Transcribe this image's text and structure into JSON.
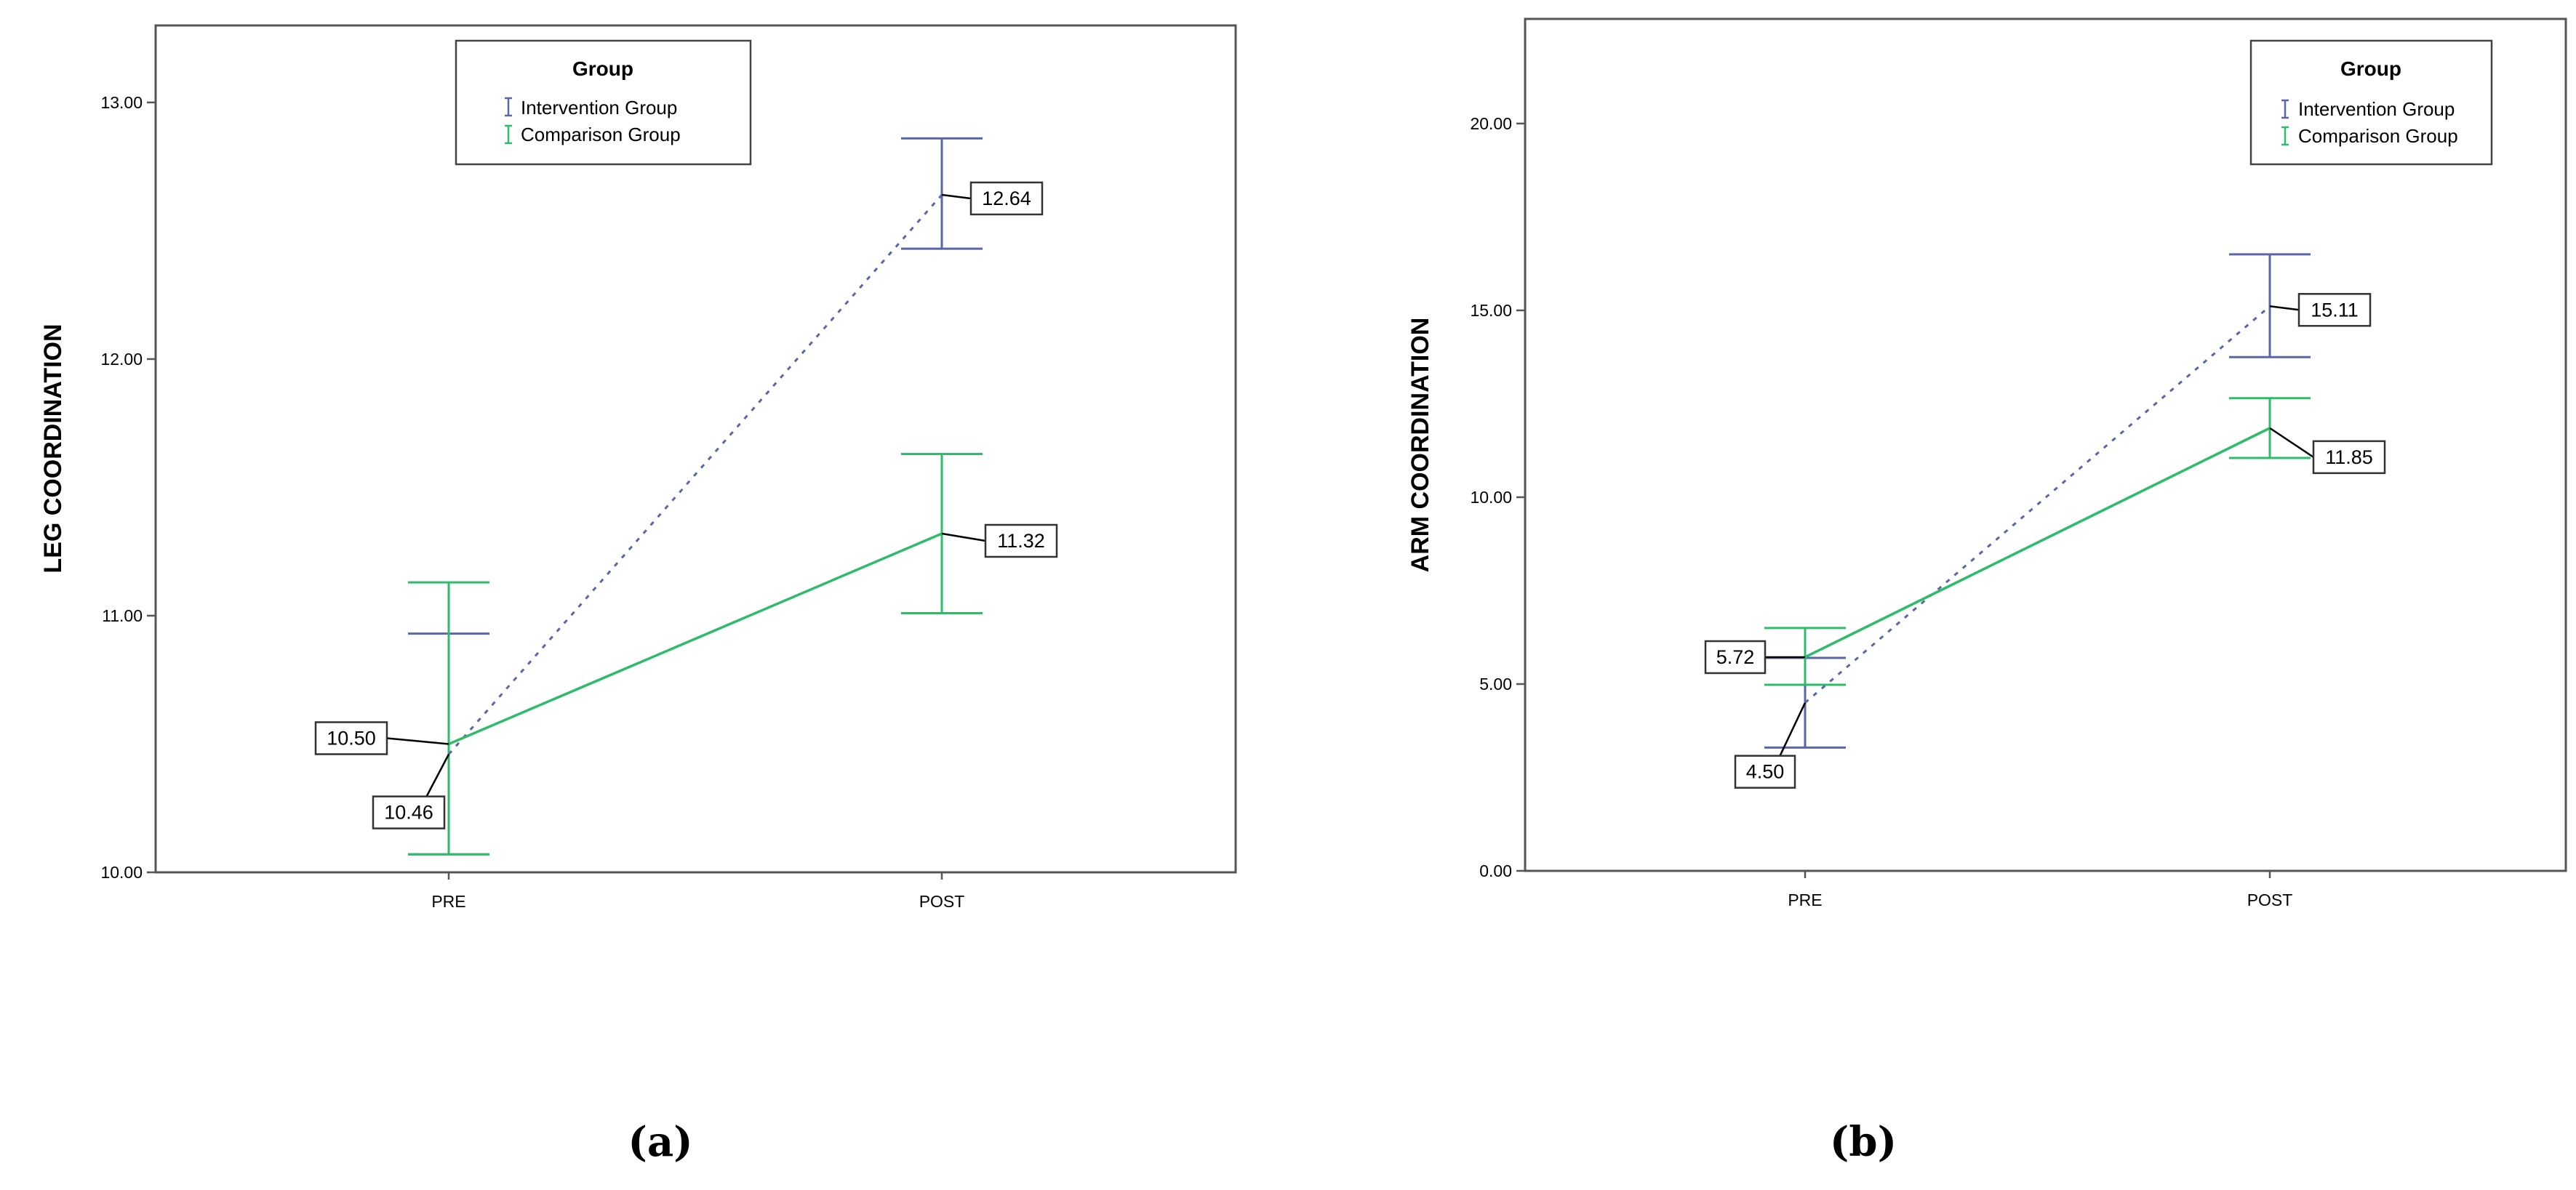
{
  "colors": {
    "intervention": "#5a66a8",
    "comparison": "#2ebc6a"
  },
  "legend": {
    "title": "Group",
    "items": [
      "Intervention Group",
      "Comparison Group"
    ],
    "placement": "top-right"
  },
  "chart_data": [
    {
      "type": "line",
      "panel_label": "(a)",
      "categories": [
        "PRE",
        "POST"
      ],
      "ylabel": "LEG COORDINATION",
      "ylim": [
        10,
        13.3
      ],
      "yticks": [
        "10.00",
        "11.00",
        "12.00",
        "13.00"
      ],
      "yticks_values": [
        10,
        11,
        12,
        13
      ],
      "series": [
        {
          "name": "Intervention Group",
          "style": "dotted",
          "values": [
            10.46,
            12.64
          ],
          "err_low": [
            10.07,
            12.43
          ],
          "err_high": [
            10.93,
            12.86
          ],
          "labels": [
            "10.46",
            "12.64"
          ]
        },
        {
          "name": "Comparison Group",
          "style": "solid",
          "values": [
            10.5,
            11.32
          ],
          "err_low": [
            10.07,
            11.01
          ],
          "err_high": [
            11.13,
            11.63
          ],
          "labels": [
            "10.50",
            "11.32"
          ]
        }
      ]
    },
    {
      "type": "line",
      "panel_label": "(b)",
      "categories": [
        "PRE",
        "POST"
      ],
      "ylabel": "ARM COORDINATION",
      "ylim": [
        0,
        22.8
      ],
      "yticks": [
        "0.00",
        "5.00",
        "10.00",
        "15.00",
        "20.00"
      ],
      "yticks_values": [
        0,
        5,
        10,
        15,
        20
      ],
      "series": [
        {
          "name": "Intervention Group",
          "style": "dotted",
          "values": [
            4.5,
            15.11
          ],
          "err_low": [
            3.3,
            13.75
          ],
          "err_high": [
            5.7,
            16.5
          ],
          "labels": [
            "4.50",
            "15.11"
          ]
        },
        {
          "name": "Comparison Group",
          "style": "solid",
          "values": [
            5.72,
            11.85
          ],
          "err_low": [
            4.98,
            11.05
          ],
          "err_high": [
            6.5,
            12.65
          ],
          "labels": [
            "5.72",
            "11.85"
          ]
        }
      ]
    }
  ]
}
